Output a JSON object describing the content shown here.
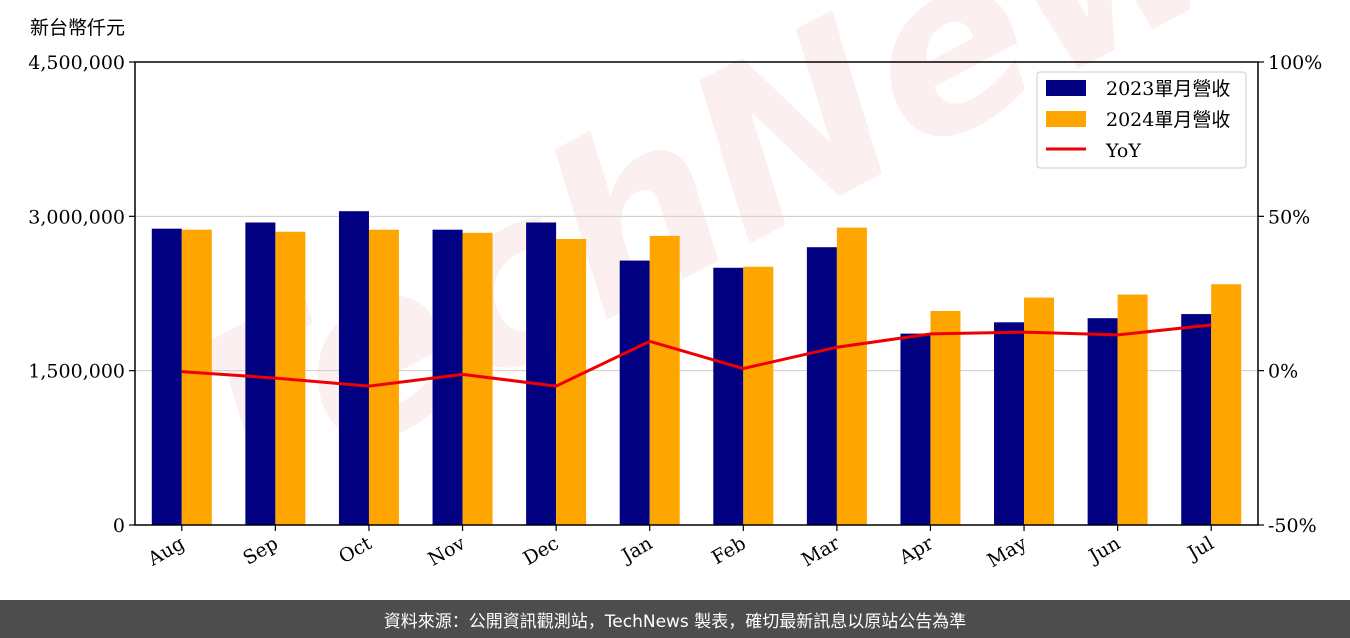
{
  "chart_data": {
    "type": "bar",
    "unit_label": "新台幣仟元",
    "categories": [
      "Aug",
      "Sep",
      "Oct",
      "Nov",
      "Dec",
      "Jan",
      "Feb",
      "Mar",
      "Apr",
      "May",
      "Jun",
      "Jul"
    ],
    "series": [
      {
        "name": "2023單月營收",
        "type": "bar",
        "axis": "left",
        "color": "#000080",
        "values": [
          2880000,
          2940000,
          3050000,
          2870000,
          2940000,
          2570000,
          2500000,
          2700000,
          1860000,
          1970000,
          2010000,
          2050000
        ]
      },
      {
        "name": "2024單月營收",
        "type": "bar",
        "axis": "left",
        "color": "#ffa500",
        "values": [
          2870000,
          2850000,
          2870000,
          2840000,
          2780000,
          2810000,
          2510000,
          2890000,
          2080000,
          2210000,
          2240000,
          2340000
        ]
      },
      {
        "name": "YoY",
        "type": "line",
        "axis": "right",
        "color": "#ee0000",
        "values": [
          -0.3,
          -2.4,
          -5.0,
          -1.2,
          -5.0,
          9.5,
          0.7,
          7.6,
          11.9,
          12.5,
          11.6,
          14.8
        ]
      }
    ],
    "y_left": {
      "min": 0,
      "max": 4500000,
      "ticks": [
        0,
        1500000,
        3000000,
        4500000
      ],
      "tick_labels": [
        "0",
        "1,500,000",
        "3,000,000",
        "4,500,000"
      ]
    },
    "y_right": {
      "min": -50,
      "max": 100,
      "ticks": [
        -50,
        0,
        50,
        100
      ],
      "tick_labels": [
        "-50%",
        "0%",
        "50%",
        "100%"
      ]
    },
    "grid": "horizontal",
    "legend_position": "top-right"
  },
  "watermark": "TechNews",
  "footer": {
    "text": "資料來源：公開資訊觀測站，TechNews 製表，確切最新訊息以原站公告為準"
  },
  "colors": {
    "footer_bg": "#4d4d4d",
    "grid": "#cccccc"
  }
}
